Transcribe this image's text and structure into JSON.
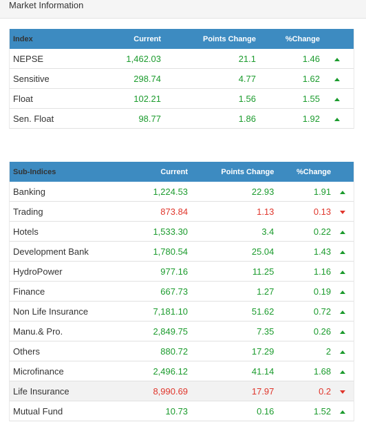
{
  "header": {
    "title": "Market Information"
  },
  "index_table": {
    "columns": [
      "Index",
      "Current",
      "Points Change",
      "%Change"
    ],
    "rows": [
      {
        "name": "NEPSE",
        "current": "1,462.03",
        "points": "21.1",
        "pct": "1.46",
        "dir": "up"
      },
      {
        "name": "Sensitive",
        "current": "298.74",
        "points": "4.77",
        "pct": "1.62",
        "dir": "up"
      },
      {
        "name": "Float",
        "current": "102.21",
        "points": "1.56",
        "pct": "1.55",
        "dir": "up"
      },
      {
        "name": "Sen. Float",
        "current": "98.77",
        "points": "1.86",
        "pct": "1.92",
        "dir": "up"
      }
    ]
  },
  "subindex_table": {
    "columns": [
      "Sub-Indices",
      "Current",
      "Points Change",
      "%Change"
    ],
    "rows": [
      {
        "name": "Banking",
        "current": "1,224.53",
        "points": "22.93",
        "pct": "1.91",
        "dir": "up"
      },
      {
        "name": "Trading",
        "current": "873.84",
        "points": "1.13",
        "pct": "0.13",
        "dir": "down"
      },
      {
        "name": "Hotels",
        "current": "1,533.30",
        "points": "3.4",
        "pct": "0.22",
        "dir": "up"
      },
      {
        "name": "Development Bank",
        "current": "1,780.54",
        "points": "25.04",
        "pct": "1.43",
        "dir": "up"
      },
      {
        "name": "HydroPower",
        "current": "977.16",
        "points": "11.25",
        "pct": "1.16",
        "dir": "up"
      },
      {
        "name": "Finance",
        "current": "667.73",
        "points": "1.27",
        "pct": "0.19",
        "dir": "up"
      },
      {
        "name": "Non Life Insurance",
        "current": "7,181.10",
        "points": "51.62",
        "pct": "0.72",
        "dir": "up"
      },
      {
        "name": "Manu.& Pro.",
        "current": "2,849.75",
        "points": "7.35",
        "pct": "0.26",
        "dir": "up"
      },
      {
        "name": "Others",
        "current": "880.72",
        "points": "17.29",
        "pct": "2",
        "dir": "up"
      },
      {
        "name": "Microfinance",
        "current": "2,496.12",
        "points": "41.14",
        "pct": "1.68",
        "dir": "up"
      },
      {
        "name": "Life Insurance",
        "current": "8,990.69",
        "points": "17.97",
        "pct": "0.2",
        "dir": "down",
        "highlight": true
      },
      {
        "name": "Mutual Fund",
        "current": "10.73",
        "points": "0.16",
        "pct": "1.52",
        "dir": "up"
      }
    ]
  },
  "colors": {
    "header_bg": "#3d8bc1",
    "up": "#1b9b2d",
    "down": "#e0352b"
  }
}
